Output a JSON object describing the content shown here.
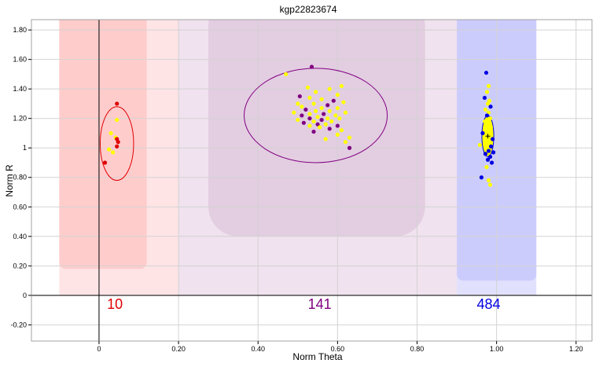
{
  "chart_data": {
    "type": "scatter",
    "title": "kgp22823674",
    "xlabel": "Norm Theta",
    "ylabel": "Norm R",
    "xlim": [
      -0.17,
      1.24
    ],
    "ylim": [
      -0.31,
      1.87
    ],
    "grid": true,
    "x_ticks": [
      {
        "value": 0,
        "label": "0"
      },
      {
        "value": 0.2,
        "label": "0.20"
      },
      {
        "value": 0.4,
        "label": "0.40"
      },
      {
        "value": 0.6,
        "label": "0.60"
      },
      {
        "value": 0.8,
        "label": "0.80"
      },
      {
        "value": 1.0,
        "label": "1.00"
      },
      {
        "value": 1.2,
        "label": "1.20"
      }
    ],
    "y_ticks": [
      {
        "value": -0.2,
        "label": "-0.20"
      },
      {
        "value": 0,
        "label": "0"
      },
      {
        "value": 0.2,
        "label": "0.20"
      },
      {
        "value": 0.4,
        "label": "0.40"
      },
      {
        "value": 0.6,
        "label": "0.60"
      },
      {
        "value": 0.8,
        "label": "0.80"
      },
      {
        "value": 1.0,
        "label": "1"
      },
      {
        "value": 1.2,
        "label": "1.20"
      },
      {
        "value": 1.4,
        "label": "1.40"
      },
      {
        "value": 1.6,
        "label": "1.60"
      },
      {
        "value": 1.8,
        "label": "1.80"
      }
    ],
    "clusters": [
      {
        "count_label": "10",
        "color": "#e00000",
        "label_x": 0.04,
        "ellipse": {
          "cx": 0.045,
          "cy": 1.03,
          "rx": 0.042,
          "ry": 0.25
        },
        "region": {
          "x0": -0.1,
          "x1": 0.12,
          "y0": 0.18,
          "y1": 1.87,
          "fill": "#ffcccc"
        },
        "zone": {
          "x0": -0.1,
          "x1": 0.2,
          "fill": "#ffe4e6"
        },
        "points": [
          {
            "x": 0.045,
            "y": 1.3,
            "c": "#e00000"
          },
          {
            "x": 0.045,
            "y": 1.19,
            "c": "#ffff00"
          },
          {
            "x": 0.03,
            "y": 1.1,
            "c": "#ffff00"
          },
          {
            "x": 0.042,
            "y": 1.07,
            "c": "#ffff00"
          },
          {
            "x": 0.045,
            "y": 1.06,
            "c": "#e00000"
          },
          {
            "x": 0.048,
            "y": 1.04,
            "c": "#e00000"
          },
          {
            "x": 0.045,
            "y": 1.01,
            "c": "#e00000"
          },
          {
            "x": 0.025,
            "y": 0.99,
            "c": "#ffff00"
          },
          {
            "x": 0.035,
            "y": 0.97,
            "c": "#ffff00"
          },
          {
            "x": 0.015,
            "y": 0.9,
            "c": "#e00000"
          }
        ]
      },
      {
        "count_label": "141",
        "color": "#800080",
        "label_x": 0.555,
        "ellipse": {
          "cx": 0.545,
          "cy": 1.22,
          "rx": 0.18,
          "ry": 0.32
        },
        "region": {
          "x0": 0.275,
          "x1": 0.82,
          "y0": 0.4,
          "y1": 1.87,
          "fill": "#e3cde1"
        },
        "zone": {
          "x0": 0.2,
          "x1": 0.9,
          "fill": "#f0e2ee"
        },
        "points": [
          {
            "x": 0.535,
            "y": 1.55,
            "c": "#800080"
          },
          {
            "x": 0.47,
            "y": 1.5,
            "c": "#ffff00"
          },
          {
            "x": 0.61,
            "y": 1.42,
            "c": "#ffff00"
          },
          {
            "x": 0.525,
            "y": 1.41,
            "c": "#ffff00"
          },
          {
            "x": 0.58,
            "y": 1.4,
            "c": "#ffff00"
          },
          {
            "x": 0.545,
            "y": 1.38,
            "c": "#ffff00"
          },
          {
            "x": 0.6,
            "y": 1.36,
            "c": "#ffff00"
          },
          {
            "x": 0.505,
            "y": 1.35,
            "c": "#800080"
          },
          {
            "x": 0.53,
            "y": 1.34,
            "c": "#ffff00"
          },
          {
            "x": 0.56,
            "y": 1.33,
            "c": "#ffff00"
          },
          {
            "x": 0.59,
            "y": 1.32,
            "c": "#800080"
          },
          {
            "x": 0.615,
            "y": 1.31,
            "c": "#ffff00"
          },
          {
            "x": 0.5,
            "y": 1.3,
            "c": "#ffff00"
          },
          {
            "x": 0.54,
            "y": 1.3,
            "c": "#ffff00"
          },
          {
            "x": 0.575,
            "y": 1.29,
            "c": "#800080"
          },
          {
            "x": 0.51,
            "y": 1.28,
            "c": "#ffff00"
          },
          {
            "x": 0.56,
            "y": 1.27,
            "c": "#ffff00"
          },
          {
            "x": 0.6,
            "y": 1.27,
            "c": "#ffff00"
          },
          {
            "x": 0.52,
            "y": 1.26,
            "c": "#800080"
          },
          {
            "x": 0.545,
            "y": 1.25,
            "c": "#ffff00"
          },
          {
            "x": 0.58,
            "y": 1.25,
            "c": "#ffff00"
          },
          {
            "x": 0.62,
            "y": 1.24,
            "c": "#ffff00"
          },
          {
            "x": 0.49,
            "y": 1.24,
            "c": "#ffff00"
          },
          {
            "x": 0.53,
            "y": 1.23,
            "c": "#ffff00"
          },
          {
            "x": 0.565,
            "y": 1.23,
            "c": "#800080"
          },
          {
            "x": 0.595,
            "y": 1.22,
            "c": "#ffff00"
          },
          {
            "x": 0.51,
            "y": 1.22,
            "c": "#800080"
          },
          {
            "x": 0.55,
            "y": 1.21,
            "c": "#ffff00"
          },
          {
            "x": 0.575,
            "y": 1.2,
            "c": "#ffff00"
          },
          {
            "x": 0.53,
            "y": 1.2,
            "c": "#800080"
          },
          {
            "x": 0.605,
            "y": 1.2,
            "c": "#ffff00"
          },
          {
            "x": 0.5,
            "y": 1.19,
            "c": "#ffff00"
          },
          {
            "x": 0.56,
            "y": 1.19,
            "c": "#800080"
          },
          {
            "x": 0.54,
            "y": 1.18,
            "c": "#ffff00"
          },
          {
            "x": 0.585,
            "y": 1.18,
            "c": "#ffff00"
          },
          {
            "x": 0.515,
            "y": 1.17,
            "c": "#800080"
          },
          {
            "x": 0.55,
            "y": 1.16,
            "c": "#800080"
          },
          {
            "x": 0.57,
            "y": 1.16,
            "c": "#ffff00"
          },
          {
            "x": 0.6,
            "y": 1.15,
            "c": "#800080"
          },
          {
            "x": 0.53,
            "y": 1.15,
            "c": "#ffff00"
          },
          {
            "x": 0.555,
            "y": 1.14,
            "c": "#ffff00"
          },
          {
            "x": 0.58,
            "y": 1.13,
            "c": "#800080"
          },
          {
            "x": 0.61,
            "y": 1.12,
            "c": "#ffff00"
          },
          {
            "x": 0.54,
            "y": 1.11,
            "c": "#800080"
          },
          {
            "x": 0.6,
            "y": 1.09,
            "c": "#ffff00"
          },
          {
            "x": 0.63,
            "y": 1.07,
            "c": "#ffff00"
          },
          {
            "x": 0.57,
            "y": 1.06,
            "c": "#ffff00"
          },
          {
            "x": 0.62,
            "y": 1.04,
            "c": "#ffff00"
          },
          {
            "x": 0.63,
            "y": 1.0,
            "c": "#800080"
          }
        ]
      },
      {
        "count_label": "484",
        "color": "#0000e0",
        "label_x": 0.98,
        "ellipse": {
          "cx": 0.978,
          "cy": 1.08,
          "rx": 0.015,
          "ry": 0.14
        },
        "region": {
          "x0": 0.9,
          "x1": 1.1,
          "y0": 0.1,
          "y1": 1.87,
          "fill": "#ccccfc"
        },
        "zone": {
          "x0": 0.9,
          "x1": 1.1,
          "fill": "#e1e1fd"
        },
        "points": [
          {
            "x": 0.974,
            "y": 1.51,
            "c": "#0000e0"
          },
          {
            "x": 0.98,
            "y": 1.42,
            "c": "#ffff00"
          },
          {
            "x": 0.976,
            "y": 1.38,
            "c": "#ffff00"
          },
          {
            "x": 0.97,
            "y": 1.34,
            "c": "#0000e0"
          },
          {
            "x": 0.982,
            "y": 1.32,
            "c": "#ffff00"
          },
          {
            "x": 0.978,
            "y": 1.3,
            "c": "#ffff00"
          },
          {
            "x": 0.985,
            "y": 1.28,
            "c": "#0000e0"
          },
          {
            "x": 0.972,
            "y": 1.26,
            "c": "#ffff00"
          },
          {
            "x": 0.98,
            "y": 1.24,
            "c": "#ffff00"
          },
          {
            "x": 0.976,
            "y": 1.22,
            "c": "#0000e0"
          },
          {
            "x": 0.984,
            "y": 1.2,
            "c": "#ffff00"
          },
          {
            "x": 0.97,
            "y": 1.18,
            "c": "#ffff00"
          },
          {
            "x": 0.978,
            "y": 1.16,
            "c": "#ffff00"
          },
          {
            "x": 0.986,
            "y": 1.14,
            "c": "#ffff00"
          },
          {
            "x": 0.974,
            "y": 1.12,
            "c": "#ffff00"
          },
          {
            "x": 0.965,
            "y": 1.1,
            "c": "#0000e0"
          },
          {
            "x": 0.982,
            "y": 1.09,
            "c": "#ffff00"
          },
          {
            "x": 0.976,
            "y": 1.07,
            "c": "#ffff00"
          },
          {
            "x": 0.99,
            "y": 1.06,
            "c": "#0000e0"
          },
          {
            "x": 0.97,
            "y": 1.05,
            "c": "#ffff00"
          },
          {
            "x": 0.98,
            "y": 1.03,
            "c": "#ffff00"
          },
          {
            "x": 0.958,
            "y": 1.02,
            "c": "#ffff00"
          },
          {
            "x": 0.986,
            "y": 1.01,
            "c": "#0000e0"
          },
          {
            "x": 0.974,
            "y": 1.0,
            "c": "#ffff00"
          },
          {
            "x": 0.98,
            "y": 0.98,
            "c": "#0000e0"
          },
          {
            "x": 0.992,
            "y": 0.97,
            "c": "#0000e0"
          },
          {
            "x": 0.972,
            "y": 0.96,
            "c": "#0000e0"
          },
          {
            "x": 0.984,
            "y": 0.94,
            "c": "#0000e0"
          },
          {
            "x": 0.978,
            "y": 0.92,
            "c": "#0000e0"
          },
          {
            "x": 0.988,
            "y": 0.9,
            "c": "#0000e0"
          },
          {
            "x": 0.975,
            "y": 0.87,
            "c": "#ffff00"
          },
          {
            "x": 0.962,
            "y": 0.8,
            "c": "#0000e0"
          },
          {
            "x": 0.98,
            "y": 0.78,
            "c": "#ffff00"
          },
          {
            "x": 0.984,
            "y": 0.75,
            "c": "#ffff00"
          }
        ]
      }
    ]
  }
}
